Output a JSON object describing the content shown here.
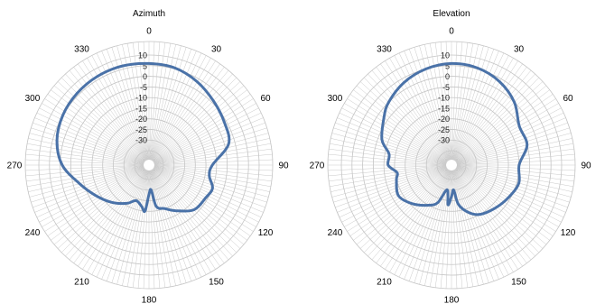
{
  "chart_data": [
    {
      "type": "polar-line",
      "title": "Azimuth",
      "angular_tick_labels": [
        "0",
        "30",
        "60",
        "90",
        "120",
        "150",
        "180",
        "210",
        "240",
        "270",
        "300",
        "330"
      ],
      "radial_tick_labels": [
        "10",
        "5",
        "0",
        "-5",
        "-10",
        "-15",
        "-20",
        "-25",
        "-30"
      ],
      "rlim": [
        -35,
        10
      ],
      "angular_direction": "clockwise-from-top",
      "grid": true,
      "series": [
        {
          "color": "#4a72a8",
          "angle_deg": [
            0,
            15,
            30,
            45,
            60,
            75,
            90,
            100,
            110,
            120,
            135,
            150,
            160,
            170,
            175,
            180,
            185,
            190,
            200,
            210,
            225,
            240,
            255,
            270,
            285,
            300,
            315,
            330,
            345,
            360
          ],
          "values_db": [
            6,
            5.5,
            3.5,
            1,
            -1,
            -3,
            -12,
            -13,
            -10,
            -11,
            -12,
            -17,
            -20,
            -22,
            -30,
            -28,
            -20,
            -22,
            -24,
            -21,
            -17,
            -13,
            -8,
            -1,
            3,
            5,
            6,
            6.5,
            6.5,
            6
          ]
        }
      ]
    },
    {
      "type": "polar-line",
      "title": "Elevation",
      "angular_tick_labels": [
        "0",
        "30",
        "60",
        "90",
        "120",
        "150",
        "180",
        "210",
        "240",
        "270",
        "300",
        "330"
      ],
      "radial_tick_labels": [
        "10",
        "5",
        "0",
        "-5",
        "-10",
        "-15",
        "-20",
        "-25",
        "-30"
      ],
      "rlim": [
        -35,
        10
      ],
      "angular_direction": "clockwise-from-top",
      "grid": true,
      "series": [
        {
          "color": "#4a72a8",
          "angle_deg": [
            0,
            15,
            30,
            45,
            60,
            75,
            90,
            105,
            120,
            135,
            150,
            160,
            170,
            175,
            180,
            185,
            190,
            200,
            210,
            225,
            240,
            255,
            262,
            270,
            280,
            290,
            305,
            315,
            330,
            345,
            360
          ],
          "values_db": [
            6,
            5.5,
            3.5,
            0,
            -5,
            -5,
            -10,
            -9,
            -11,
            -13,
            -15,
            -18,
            -23,
            -30,
            -27,
            -23,
            -30,
            -23,
            -20,
            -16,
            -13,
            -15,
            -16,
            -12,
            -12,
            -7,
            -3,
            0,
            3,
            5,
            6
          ]
        }
      ]
    }
  ]
}
